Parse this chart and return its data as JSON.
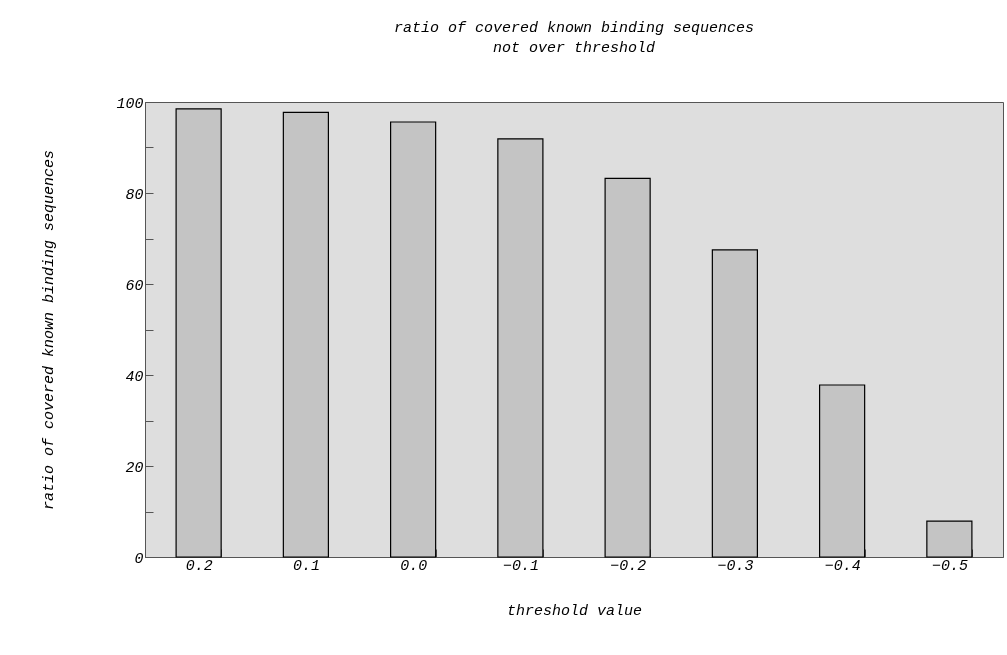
{
  "chart_data": {
    "type": "bar",
    "title": "ratio of covered known binding sequences\nnot over threshold",
    "xlabel": "threshold value",
    "ylabel": "ratio of covered known binding sequences",
    "categories": [
      "0.2",
      "0.1",
      "0.0",
      "−0.1",
      "−0.2",
      "−0.3",
      "−0.4",
      "−0.5"
    ],
    "values": [
      98.5,
      97.7,
      95.6,
      91.9,
      83.2,
      67.5,
      37.8,
      7.9
    ],
    "color": "#c4c4c4",
    "ylim": [
      0,
      100
    ],
    "yticks": [
      0,
      {
        "value": 10,
        "label": null
      },
      20,
      {
        "value": 30,
        "label": null
      },
      40,
      {
        "value": 50,
        "label": null
      },
      60,
      {
        "value": 70,
        "label": null
      },
      80,
      {
        "value": 90,
        "label": null
      },
      100
    ],
    "grid": false
  }
}
